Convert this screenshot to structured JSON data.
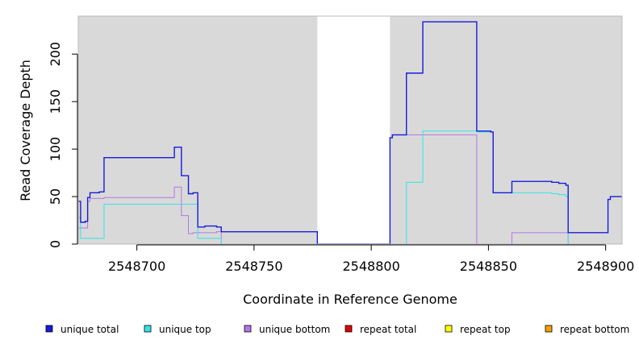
{
  "chart_data": {
    "type": "line",
    "title": "",
    "xlabel": "Coordinate in Reference Genome",
    "ylabel": "Read Coverage Depth",
    "xlim": [
      2548675,
      2548907
    ],
    "ylim": [
      0,
      240
    ],
    "xticks": [
      2548700,
      2548750,
      2548800,
      2548850,
      2548900
    ],
    "yticks": [
      0,
      50,
      100,
      150,
      200
    ],
    "background_color": "#d9d9d9",
    "gap": [
      2548777,
      2548808
    ],
    "legend_position": "bottom",
    "series": [
      {
        "name": "unique total",
        "color": "#1a1adb",
        "points": [
          [
            2548675,
            45
          ],
          [
            2548676,
            45
          ],
          [
            2548676,
            23
          ],
          [
            2548678,
            23
          ],
          [
            2548678,
            24
          ],
          [
            2548679,
            24
          ],
          [
            2548679,
            49
          ],
          [
            2548680,
            49
          ],
          [
            2548680,
            54
          ],
          [
            2548684,
            54
          ],
          [
            2548684,
            55
          ],
          [
            2548686,
            55
          ],
          [
            2548686,
            91
          ],
          [
            2548716,
            91
          ],
          [
            2548716,
            102
          ],
          [
            2548719,
            102
          ],
          [
            2548719,
            72
          ],
          [
            2548722,
            72
          ],
          [
            2548722,
            53
          ],
          [
            2548724,
            53
          ],
          [
            2548724,
            54
          ],
          [
            2548726,
            54
          ],
          [
            2548726,
            18
          ],
          [
            2548729,
            18
          ],
          [
            2548729,
            19
          ],
          [
            2548734,
            19
          ],
          [
            2548734,
            18
          ],
          [
            2548736,
            18
          ],
          [
            2548736,
            13
          ],
          [
            2548777,
            13
          ],
          [
            2548777,
            0
          ],
          [
            2548808,
            0
          ],
          [
            2548808,
            112
          ],
          [
            2548809,
            112
          ],
          [
            2548809,
            115
          ],
          [
            2548815,
            115
          ],
          [
            2548815,
            180
          ],
          [
            2548822,
            180
          ],
          [
            2548822,
            234
          ],
          [
            2548845,
            234
          ],
          [
            2548845,
            119
          ],
          [
            2548851,
            119
          ],
          [
            2548851,
            118
          ],
          [
            2548852,
            118
          ],
          [
            2548852,
            54
          ],
          [
            2548860,
            54
          ],
          [
            2548860,
            66
          ],
          [
            2548877,
            66
          ],
          [
            2548877,
            65
          ],
          [
            2548880,
            65
          ],
          [
            2548880,
            64
          ],
          [
            2548883,
            64
          ],
          [
            2548883,
            62
          ],
          [
            2548884,
            62
          ],
          [
            2548884,
            12
          ],
          [
            2548901,
            12
          ],
          [
            2548901,
            47
          ],
          [
            2548902,
            47
          ],
          [
            2548902,
            50
          ],
          [
            2548907,
            50
          ]
        ]
      },
      {
        "name": "unique top",
        "color": "#33e5e5",
        "points": [
          [
            2548675,
            28
          ],
          [
            2548676,
            28
          ],
          [
            2548676,
            6
          ],
          [
            2548686,
            6
          ],
          [
            2548686,
            42
          ],
          [
            2548726,
            42
          ],
          [
            2548726,
            6
          ],
          [
            2548736,
            6
          ],
          [
            2548736,
            0
          ],
          [
            2548815,
            0
          ],
          [
            2548815,
            65
          ],
          [
            2548822,
            65
          ],
          [
            2548822,
            119
          ],
          [
            2548845,
            119
          ],
          [
            2548845,
            118
          ],
          [
            2548852,
            118
          ],
          [
            2548852,
            54
          ],
          [
            2548877,
            54
          ],
          [
            2548877,
            53
          ],
          [
            2548880,
            53
          ],
          [
            2548880,
            52
          ],
          [
            2548883,
            52
          ],
          [
            2548883,
            50
          ],
          [
            2548884,
            50
          ],
          [
            2548884,
            0
          ],
          [
            2548907,
            0
          ]
        ]
      },
      {
        "name": "unique bottom",
        "color": "#b277e8",
        "points": [
          [
            2548675,
            17
          ],
          [
            2548679,
            17
          ],
          [
            2548679,
            45
          ],
          [
            2548680,
            45
          ],
          [
            2548680,
            48
          ],
          [
            2548686,
            48
          ],
          [
            2548686,
            49
          ],
          [
            2548716,
            49
          ],
          [
            2548716,
            60
          ],
          [
            2548719,
            60
          ],
          [
            2548719,
            30
          ],
          [
            2548722,
            30
          ],
          [
            2548722,
            11
          ],
          [
            2548724,
            11
          ],
          [
            2548724,
            12
          ],
          [
            2548726,
            12
          ],
          [
            2548726,
            12
          ],
          [
            2548734,
            12
          ],
          [
            2548734,
            13
          ],
          [
            2548736,
            13
          ],
          [
            2548736,
            0
          ],
          [
            2548808,
            0
          ],
          [
            2548808,
            112
          ],
          [
            2548809,
            112
          ],
          [
            2548809,
            115
          ],
          [
            2548845,
            115
          ],
          [
            2548845,
            0
          ],
          [
            2548860,
            0
          ],
          [
            2548860,
            12
          ],
          [
            2548884,
            12
          ],
          [
            2548884,
            0
          ],
          [
            2548907,
            0
          ]
        ]
      },
      {
        "name": "repeat total",
        "color": "#e00000",
        "points": [
          [
            2548675,
            0
          ],
          [
            2548907,
            0
          ]
        ]
      },
      {
        "name": "repeat top",
        "color": "#ffff00",
        "points": [
          [
            2548675,
            0
          ],
          [
            2548907,
            0
          ]
        ]
      },
      {
        "name": "repeat bottom",
        "color": "#f5a000",
        "points": [
          [
            2548675,
            0
          ],
          [
            2548907,
            0
          ]
        ]
      }
    ]
  }
}
